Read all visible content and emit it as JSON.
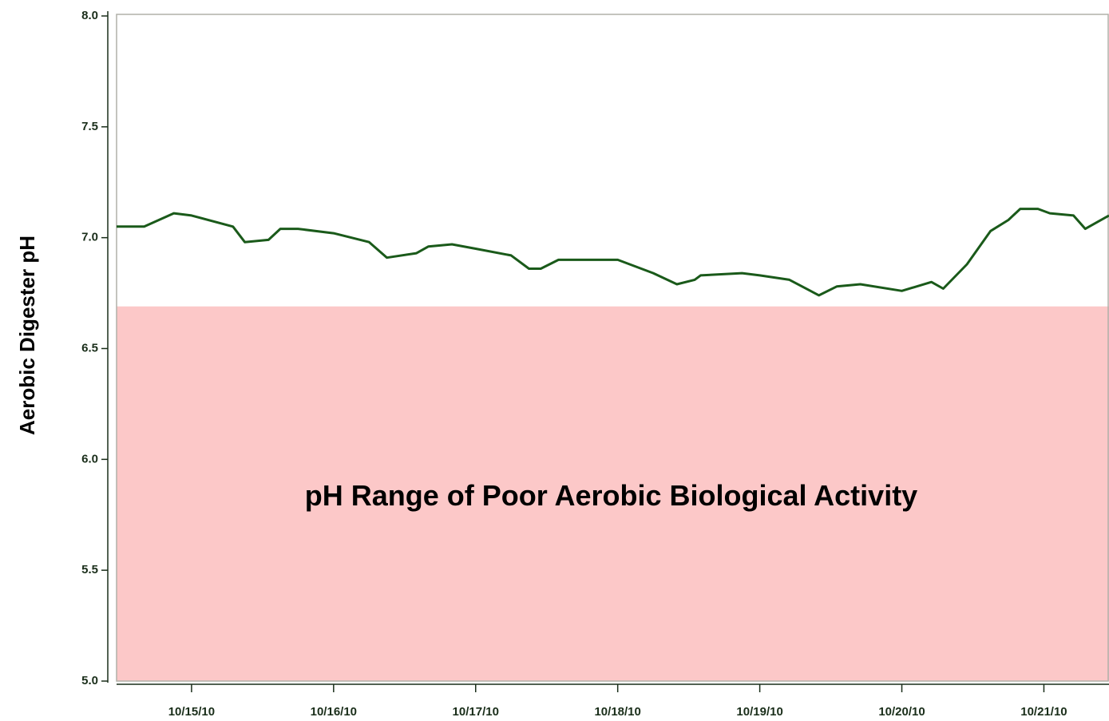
{
  "chart_data": {
    "type": "line",
    "ylabel": "Aerobic Digester pH",
    "xlim": [
      "2010-10-14T11:20",
      "2010-10-21T11:00"
    ],
    "xticks": [
      {
        "value": "2010-10-15T00:00",
        "label": "10/15/10"
      },
      {
        "value": "2010-10-16T00:00",
        "label": "10/16/10"
      },
      {
        "value": "2010-10-17T00:00",
        "label": "10/17/10"
      },
      {
        "value": "2010-10-18T00:00",
        "label": "10/18/10"
      },
      {
        "value": "2010-10-19T00:00",
        "label": "10/19/10"
      },
      {
        "value": "2010-10-20T00:00",
        "label": "10/20/10"
      },
      {
        "value": "2010-10-21T00:00",
        "label": "10/21/10"
      }
    ],
    "ylim": [
      5,
      8
    ],
    "yticks": [
      {
        "value": 5,
        "label": "5.0"
      },
      5.5,
      {
        "value": 6,
        "label": "6.0"
      },
      6.5,
      {
        "value": 7,
        "label": "7.0"
      },
      7.5,
      {
        "value": 8,
        "label": "8.0"
      }
    ],
    "band": {
      "from": 5,
      "to": 6.69,
      "color": "#fcc8c8",
      "label": "pH Range of Poor Aerobic Biological Activity"
    },
    "x": [
      "2010-10-14T11:20",
      "2010-10-14T16:00",
      "2010-10-14T21:00",
      "2010-10-15T00:00",
      "2010-10-15T07:00",
      "2010-10-15T09:00",
      "2010-10-15T13:00",
      "2010-10-15T15:00",
      "2010-10-15T18:00",
      "2010-10-16T00:00",
      "2010-10-16T06:00",
      "2010-10-16T09:00",
      "2010-10-16T14:00",
      "2010-10-16T16:00",
      "2010-10-16T20:00",
      "2010-10-17T00:00",
      "2010-10-17T06:00",
      "2010-10-17T09:00",
      "2010-10-17T11:00",
      "2010-10-17T14:00",
      "2010-10-17T18:00",
      "2010-10-18T00:00",
      "2010-10-18T06:00",
      "2010-10-18T10:00",
      "2010-10-18T13:00",
      "2010-10-18T14:00",
      "2010-10-18T21:00",
      "2010-10-19T00:00",
      "2010-10-19T05:00",
      "2010-10-19T10:00",
      "2010-10-19T13:00",
      "2010-10-19T17:00",
      "2010-10-20T00:00",
      "2010-10-20T05:00",
      "2010-10-20T07:00",
      "2010-10-20T11:00",
      "2010-10-20T15:00",
      "2010-10-20T18:00",
      "2010-10-20T20:00",
      "2010-10-20T23:00",
      "2010-10-21T01:00",
      "2010-10-21T05:00",
      "2010-10-21T07:00",
      "2010-10-21T09:00",
      "2010-10-21T11:00"
    ],
    "series": [
      {
        "color": "#1a5a1a",
        "values": [
          7.05,
          7.05,
          7.11,
          7.1,
          7.05,
          6.98,
          6.99,
          7.04,
          7.04,
          7.02,
          6.98,
          6.91,
          6.93,
          6.96,
          6.97,
          6.95,
          6.92,
          6.86,
          6.86,
          6.9,
          6.9,
          6.9,
          6.84,
          6.79,
          6.81,
          6.83,
          6.84,
          6.83,
          6.81,
          6.74,
          6.78,
          6.79,
          6.76,
          6.8,
          6.77,
          6.88,
          7.03,
          7.08,
          7.13,
          7.13,
          7.11,
          7.1,
          7.04,
          7.07,
          7.1
        ]
      }
    ]
  }
}
